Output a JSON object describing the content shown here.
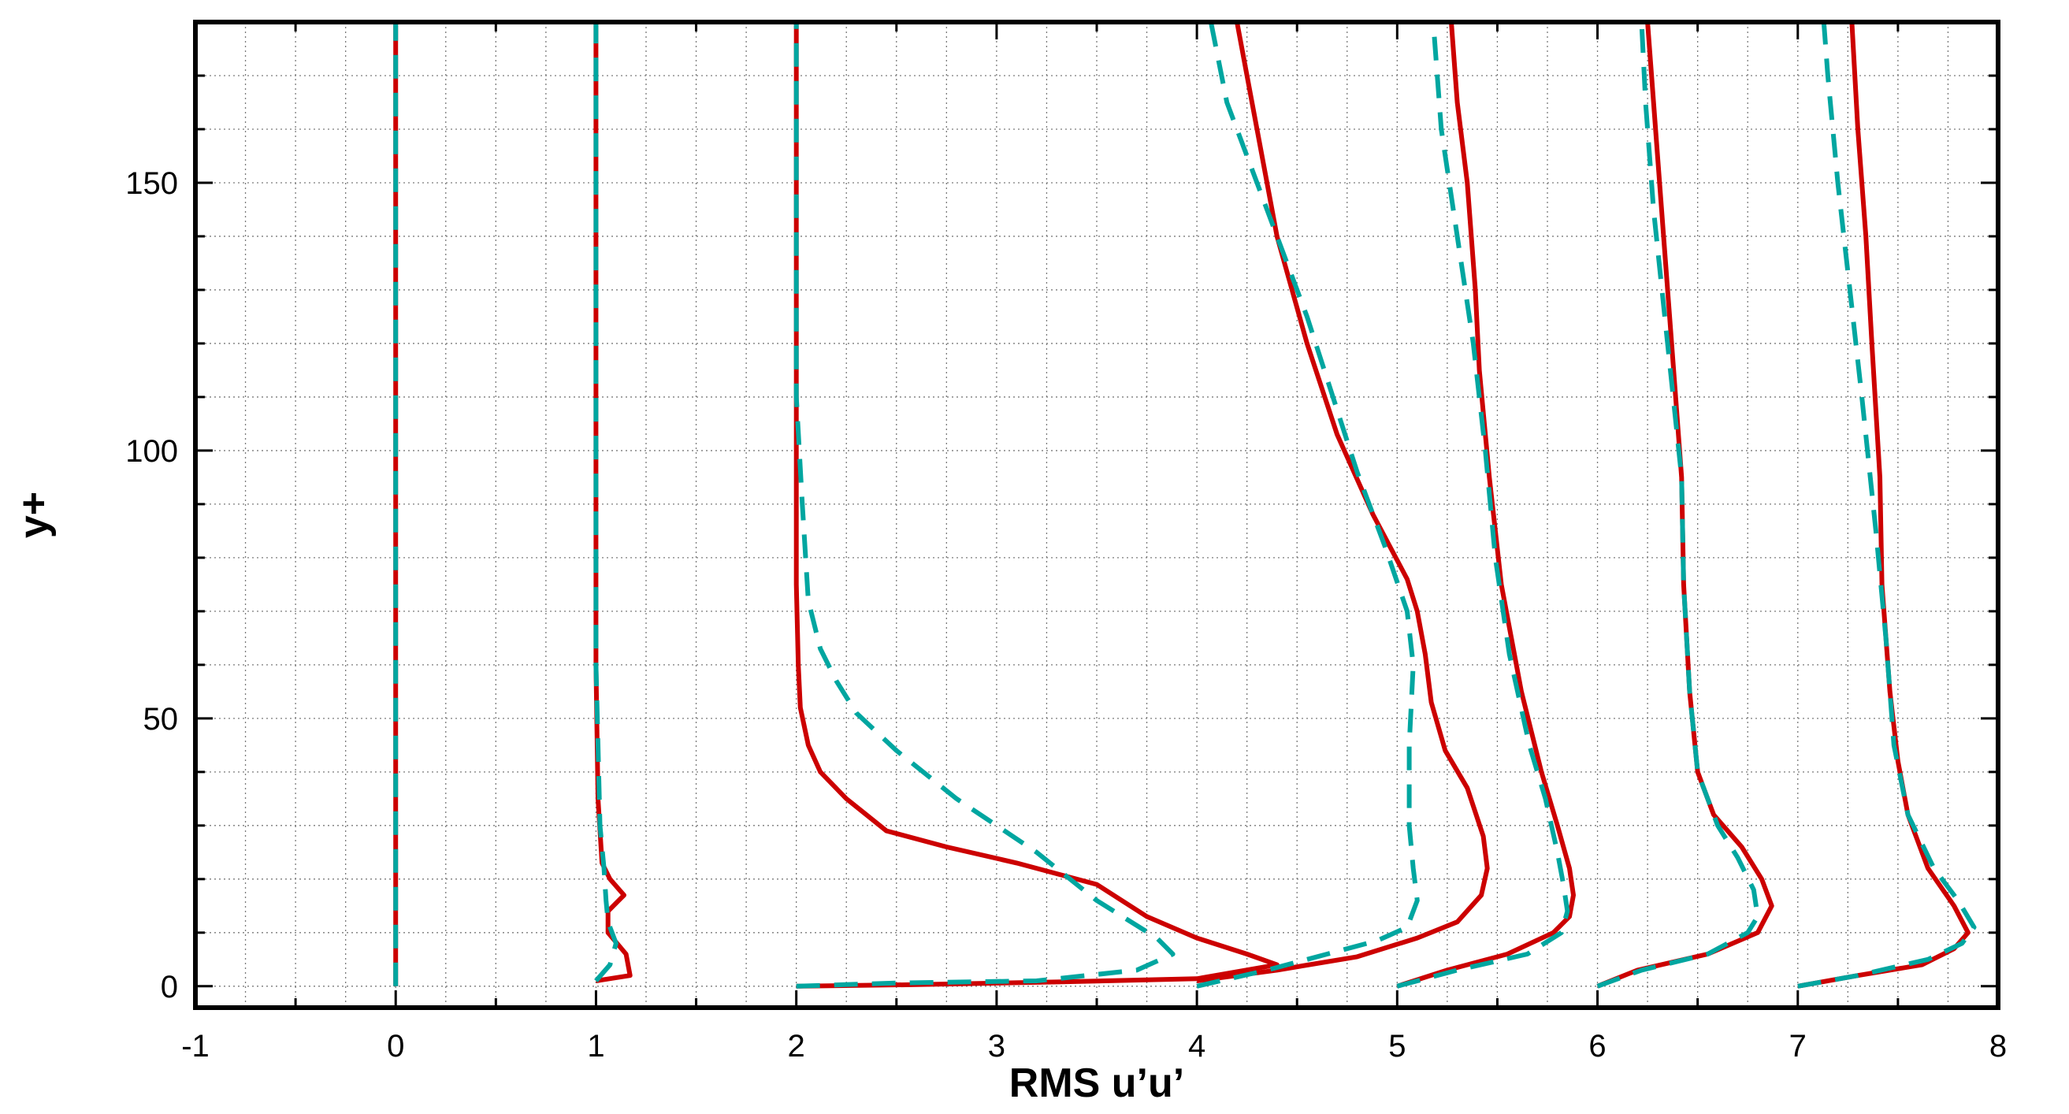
{
  "chart_data": {
    "type": "line",
    "xlabel": "RMS u’u’",
    "ylabel": "y+",
    "xlim": [
      -1,
      8
    ],
    "ylim": [
      -4,
      180
    ],
    "grid": true,
    "x_ticks": [
      -1,
      0,
      1,
      2,
      3,
      4,
      5,
      6,
      7,
      8
    ],
    "y_ticks": [
      0,
      50,
      100,
      150
    ],
    "colors": {
      "solid": "#cc0000",
      "dashed": "#00a6a0"
    },
    "series": [
      {
        "style": "solid",
        "offset": 0,
        "points": [
          [
            0.0,
            0
          ],
          [
            0.0,
            180
          ]
        ]
      },
      {
        "style": "dashed",
        "offset": 0,
        "points": [
          [
            0.0,
            0
          ],
          [
            0.0,
            180
          ]
        ]
      },
      {
        "style": "solid",
        "offset": 1,
        "points": [
          [
            1.0,
            1
          ],
          [
            1.17,
            2
          ],
          [
            1.15,
            6
          ],
          [
            1.06,
            10
          ],
          [
            1.06,
            14
          ],
          [
            1.14,
            17
          ],
          [
            1.07,
            20
          ],
          [
            1.03,
            23
          ],
          [
            1.01,
            35
          ],
          [
            1.0,
            60
          ],
          [
            1.0,
            180
          ]
        ]
      },
      {
        "style": "dashed",
        "offset": 1,
        "points": [
          [
            1.0,
            1
          ],
          [
            1.07,
            4
          ],
          [
            1.1,
            8
          ],
          [
            1.06,
            12
          ],
          [
            1.05,
            16
          ],
          [
            1.04,
            22
          ],
          [
            1.02,
            30
          ],
          [
            1.01,
            45
          ],
          [
            1.0,
            60
          ],
          [
            1.0,
            180
          ]
        ]
      },
      {
        "style": "solid",
        "offset": 2,
        "points": [
          [
            2.0,
            0
          ],
          [
            2.6,
            0.3
          ],
          [
            3.3,
            0.8
          ],
          [
            4.0,
            1.4
          ],
          [
            4.4,
            4
          ],
          [
            4.25,
            6
          ],
          [
            4.0,
            9
          ],
          [
            3.75,
            13
          ],
          [
            3.5,
            19
          ],
          [
            3.1,
            23
          ],
          [
            2.75,
            26
          ],
          [
            2.45,
            29
          ],
          [
            2.25,
            35
          ],
          [
            2.12,
            40
          ],
          [
            2.06,
            45
          ],
          [
            2.02,
            52
          ],
          [
            2.01,
            60
          ],
          [
            2.0,
            75
          ],
          [
            2.0,
            100
          ],
          [
            2.0,
            180
          ]
        ]
      },
      {
        "style": "dashed",
        "offset": 2,
        "points": [
          [
            2.0,
            0
          ],
          [
            2.5,
            0.6
          ],
          [
            3.2,
            1
          ],
          [
            3.7,
            3
          ],
          [
            3.88,
            6
          ],
          [
            3.8,
            9
          ],
          [
            3.5,
            16
          ],
          [
            3.2,
            25
          ],
          [
            2.8,
            35
          ],
          [
            2.5,
            44
          ],
          [
            2.3,
            51
          ],
          [
            2.2,
            57
          ],
          [
            2.12,
            63
          ],
          [
            2.06,
            72
          ],
          [
            2.03,
            90
          ],
          [
            2.0,
            110
          ],
          [
            2.0,
            180
          ]
        ]
      },
      {
        "style": "solid",
        "offset": 4,
        "points": [
          [
            4.0,
            1
          ],
          [
            4.4,
            3
          ],
          [
            4.8,
            5.5
          ],
          [
            5.1,
            9
          ],
          [
            5.3,
            12
          ],
          [
            5.42,
            17
          ],
          [
            5.45,
            22
          ],
          [
            5.43,
            28
          ],
          [
            5.35,
            37
          ],
          [
            5.24,
            44
          ],
          [
            5.17,
            53
          ],
          [
            5.14,
            62
          ],
          [
            5.1,
            70
          ],
          [
            5.05,
            76
          ],
          [
            4.88,
            88
          ],
          [
            4.7,
            103
          ],
          [
            4.55,
            120
          ],
          [
            4.4,
            140
          ],
          [
            4.3,
            160
          ],
          [
            4.2,
            180
          ]
        ]
      },
      {
        "style": "dashed",
        "offset": 4,
        "points": [
          [
            4.0,
            0
          ],
          [
            4.35,
            3
          ],
          [
            4.65,
            6
          ],
          [
            4.9,
            8.5
          ],
          [
            5.05,
            11
          ],
          [
            5.1,
            16
          ],
          [
            5.08,
            22
          ],
          [
            5.06,
            30
          ],
          [
            5.06,
            45
          ],
          [
            5.08,
            60
          ],
          [
            5.05,
            70
          ],
          [
            4.94,
            82
          ],
          [
            4.8,
            96
          ],
          [
            4.55,
            125
          ],
          [
            4.3,
            150
          ],
          [
            4.15,
            165
          ],
          [
            4.07,
            180
          ]
        ]
      },
      {
        "style": "solid",
        "offset": 5,
        "points": [
          [
            5.0,
            0
          ],
          [
            5.25,
            3
          ],
          [
            5.55,
            6
          ],
          [
            5.78,
            10
          ],
          [
            5.86,
            13
          ],
          [
            5.88,
            17
          ],
          [
            5.86,
            22
          ],
          [
            5.8,
            30
          ],
          [
            5.72,
            40
          ],
          [
            5.62,
            55
          ],
          [
            5.52,
            75
          ],
          [
            5.46,
            95
          ],
          [
            5.41,
            115
          ],
          [
            5.39,
            130
          ],
          [
            5.35,
            150
          ],
          [
            5.3,
            165
          ],
          [
            5.27,
            180
          ]
        ]
      },
      {
        "style": "dashed",
        "offset": 5,
        "points": [
          [
            5.0,
            0
          ],
          [
            5.3,
            3
          ],
          [
            5.65,
            6
          ],
          [
            5.82,
            10
          ],
          [
            5.85,
            14
          ],
          [
            5.83,
            19
          ],
          [
            5.8,
            25
          ],
          [
            5.74,
            35
          ],
          [
            5.66,
            45
          ],
          [
            5.56,
            62
          ],
          [
            5.49,
            80
          ],
          [
            5.44,
            100
          ],
          [
            5.38,
            120
          ],
          [
            5.3,
            140
          ],
          [
            5.22,
            160
          ],
          [
            5.18,
            180
          ]
        ]
      },
      {
        "style": "solid",
        "offset": 6,
        "points": [
          [
            6.0,
            0
          ],
          [
            6.2,
            3
          ],
          [
            6.55,
            6
          ],
          [
            6.8,
            10
          ],
          [
            6.87,
            15
          ],
          [
            6.82,
            20
          ],
          [
            6.72,
            26
          ],
          [
            6.58,
            32
          ],
          [
            6.5,
            40
          ],
          [
            6.46,
            55
          ],
          [
            6.43,
            75
          ],
          [
            6.42,
            95
          ],
          [
            6.38,
            115
          ],
          [
            6.34,
            135
          ],
          [
            6.3,
            155
          ],
          [
            6.25,
            180
          ]
        ]
      },
      {
        "style": "dashed",
        "offset": 6,
        "points": [
          [
            6.0,
            0
          ],
          [
            6.22,
            3
          ],
          [
            6.55,
            6
          ],
          [
            6.75,
            10
          ],
          [
            6.8,
            13
          ],
          [
            6.78,
            18
          ],
          [
            6.7,
            24
          ],
          [
            6.6,
            30
          ],
          [
            6.5,
            40
          ],
          [
            6.46,
            55
          ],
          [
            6.43,
            75
          ],
          [
            6.42,
            95
          ],
          [
            6.35,
            120
          ],
          [
            6.28,
            145
          ],
          [
            6.24,
            165
          ],
          [
            6.22,
            180
          ]
        ]
      },
      {
        "style": "solid",
        "offset": 7,
        "points": [
          [
            7.0,
            0
          ],
          [
            7.3,
            2
          ],
          [
            7.62,
            4
          ],
          [
            7.78,
            7
          ],
          [
            7.85,
            10
          ],
          [
            7.78,
            15
          ],
          [
            7.65,
            22
          ],
          [
            7.55,
            32
          ],
          [
            7.5,
            42
          ],
          [
            7.46,
            55
          ],
          [
            7.42,
            75
          ],
          [
            7.41,
            95
          ],
          [
            7.37,
            120
          ],
          [
            7.34,
            140
          ],
          [
            7.3,
            160
          ],
          [
            7.27,
            180
          ]
        ]
      },
      {
        "style": "dashed",
        "offset": 7,
        "points": [
          [
            7.0,
            0
          ],
          [
            7.3,
            2
          ],
          [
            7.65,
            5
          ],
          [
            7.82,
            8
          ],
          [
            7.88,
            11
          ],
          [
            7.8,
            16
          ],
          [
            7.68,
            22
          ],
          [
            7.55,
            32
          ],
          [
            7.48,
            45
          ],
          [
            7.44,
            65
          ],
          [
            7.39,
            85
          ],
          [
            7.32,
            110
          ],
          [
            7.26,
            130
          ],
          [
            7.2,
            150
          ],
          [
            7.15,
            170
          ],
          [
            7.13,
            180
          ]
        ]
      }
    ]
  }
}
